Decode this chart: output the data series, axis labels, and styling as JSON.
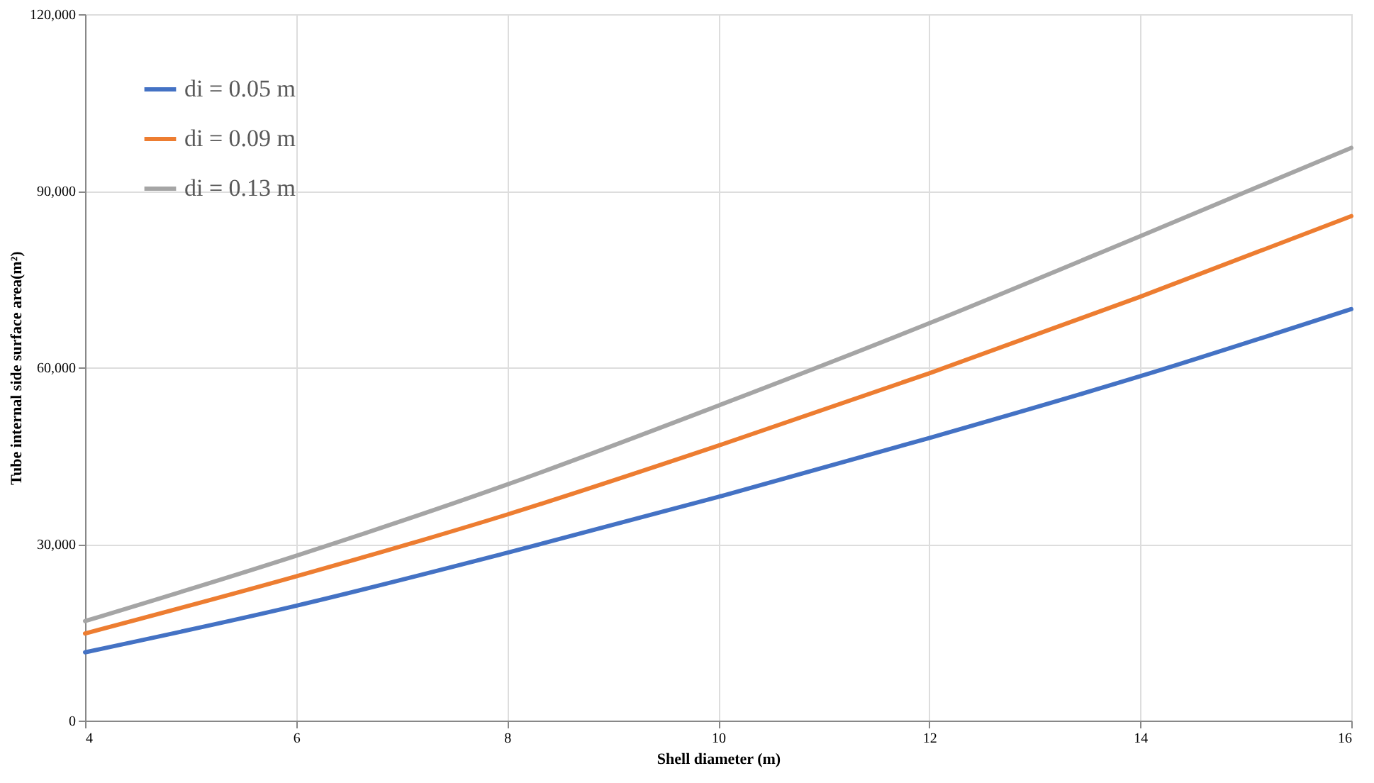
{
  "chart_data": {
    "type": "line",
    "xlabel": "Shell diameter (m)",
    "ylabel": "Tube internal side surface area(m²)",
    "x": [
      4,
      6,
      8,
      10,
      12,
      14,
      16
    ],
    "series": [
      {
        "name": "di = 0.05 m",
        "color": "#4472c4",
        "values": [
          11600,
          19500,
          28500,
          38000,
          48000,
          58500,
          69900
        ]
      },
      {
        "name": "di = 0.09 m",
        "color": "#ed7d31",
        "values": [
          14800,
          24500,
          35000,
          46700,
          59000,
          72000,
          85700
        ]
      },
      {
        "name": "di = 0.13 m",
        "color": "#a5a5a5",
        "values": [
          16900,
          28000,
          40100,
          53500,
          67500,
          82300,
          97300
        ]
      }
    ],
    "xlim": [
      4,
      16
    ],
    "xticks": [
      4,
      6,
      8,
      10,
      12,
      14,
      16
    ],
    "ylim": [
      0,
      120000
    ],
    "yticks": [
      0,
      {
        "value": 30000,
        "label": "30,000"
      },
      {
        "value": 60000,
        "label": "60,000"
      },
      {
        "value": 90000,
        "label": "90,000"
      },
      {
        "value": 120000,
        "label": "120,000"
      }
    ],
    "grid": true,
    "legend": "top left",
    "marker": "none",
    "line_style": "solid"
  }
}
